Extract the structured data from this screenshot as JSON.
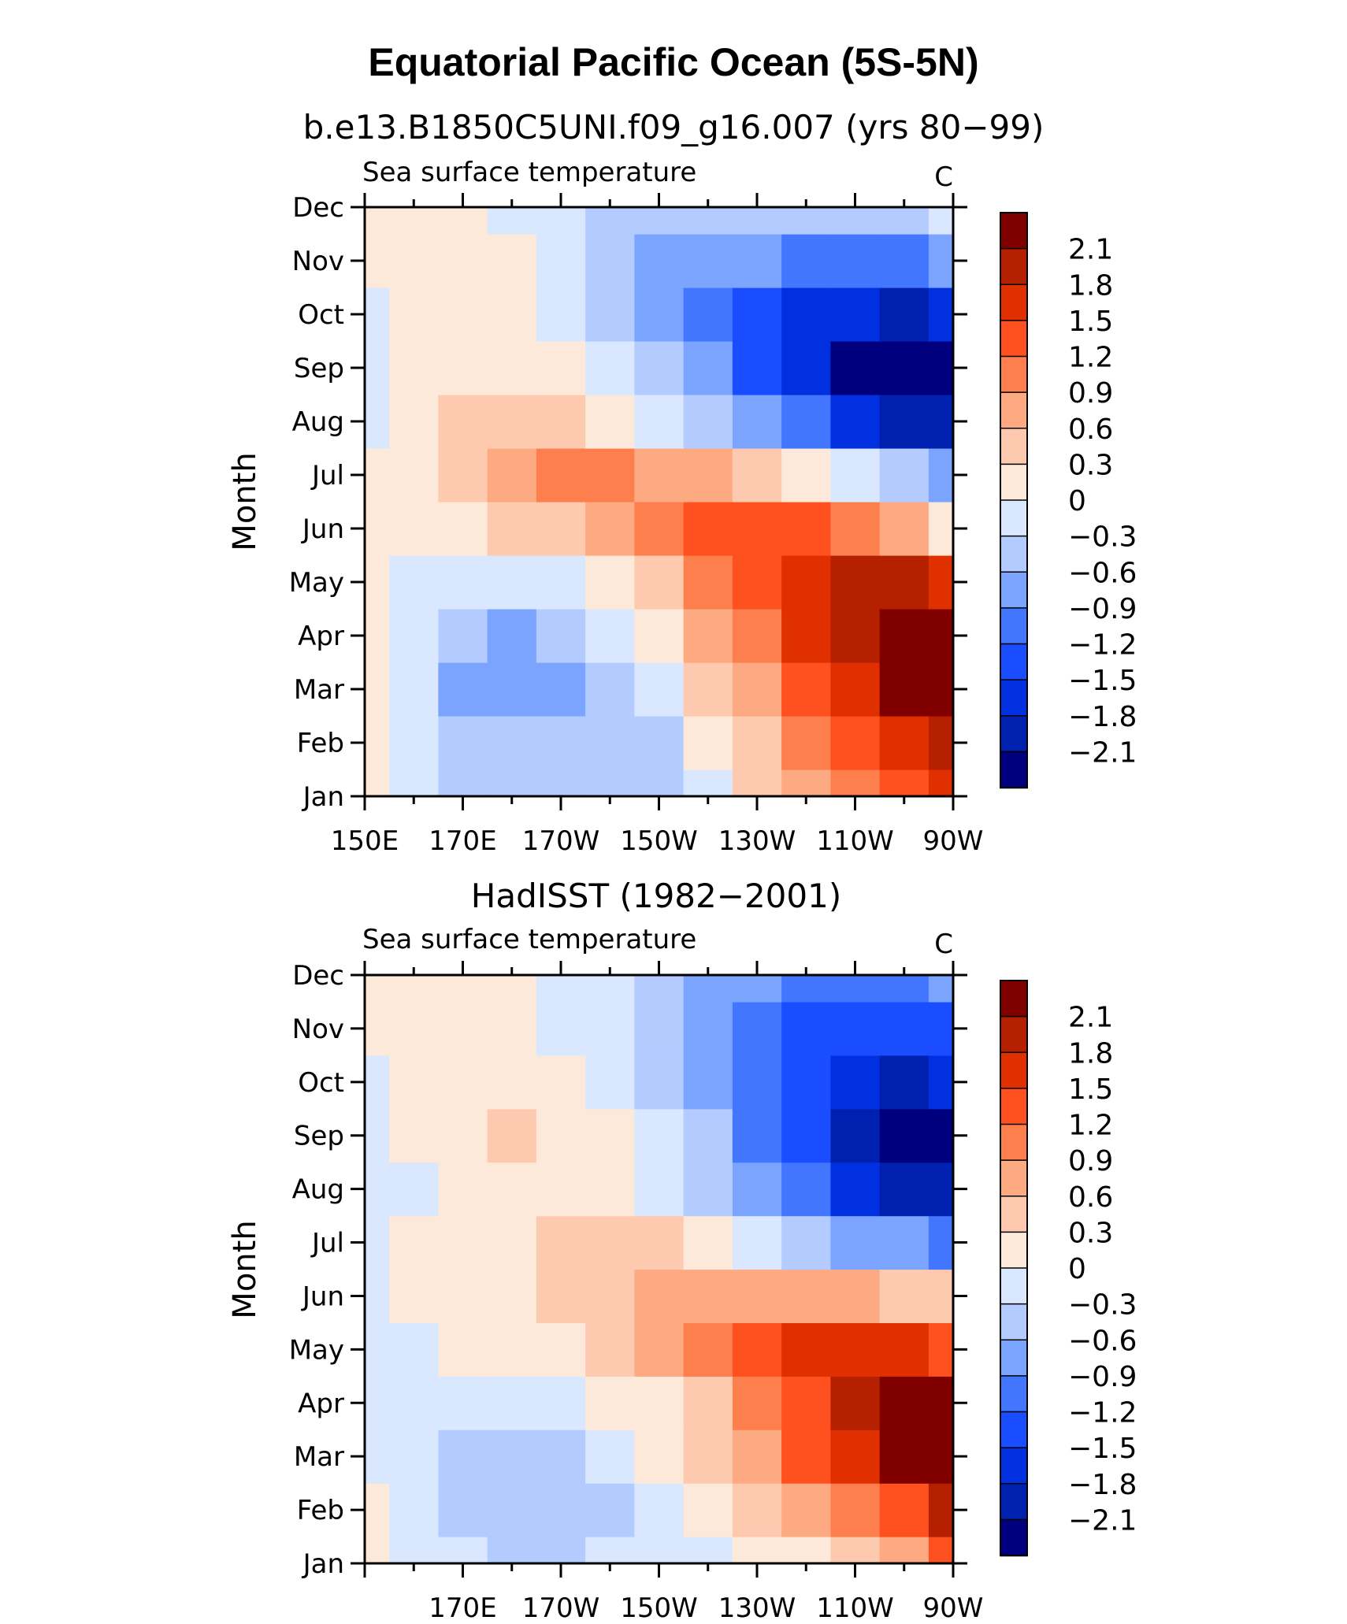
{
  "figure_title": "Equatorial Pacific Ocean (5S-5N)",
  "colors": {
    "levels_low_to_high": [
      "#00007f",
      "#0020b0",
      "#0030e0",
      "#1a4dff",
      "#4276ff",
      "#7ba4ff",
      "#b3cbff",
      "#d9e8ff",
      "#fde9d9",
      "#fdcab0",
      "#fdaa83",
      "#fd7f4d",
      "#ff5020",
      "#e03000",
      "#b52000",
      "#800000"
    ]
  },
  "chart_data": [
    {
      "type": "heatmap",
      "title": "b.e13.B1850C5UNI.f09_g16.007 (yrs 80−99)",
      "left_label": "Sea surface temperature",
      "right_label": "C",
      "xlabel": "",
      "ylabel": "Month",
      "x_tick_labels": [
        "150E",
        "170E",
        "170W",
        "150W",
        "130W",
        "110W",
        "90W"
      ],
      "y_tick_labels": [
        "Jan",
        "Feb",
        "Mar",
        "Apr",
        "May",
        "Jun",
        "Jul",
        "Aug",
        "Sep",
        "Oct",
        "Nov",
        "Dec"
      ],
      "x_range_deg_east": [
        150,
        270
      ],
      "y_range_month": [
        1,
        12
      ],
      "colorbar_labels": [
        "2.1",
        "1.8",
        "1.5",
        "1.2",
        "0.9",
        "0.6",
        "0.3",
        "0",
        "−0.3",
        "−0.6",
        "−0.9",
        "−1.2",
        "−1.5",
        "−1.8",
        "−2.1"
      ],
      "lon_deg_east": [
        150,
        160,
        170,
        180,
        190,
        200,
        210,
        220,
        230,
        240,
        250,
        260,
        270
      ],
      "months": [
        "Jan",
        "Feb",
        "Mar",
        "Apr",
        "May",
        "Jun",
        "Jul",
        "Aug",
        "Sep",
        "Oct",
        "Nov",
        "Dec"
      ],
      "values": [
        [
          0.1,
          -0.3,
          -0.4,
          -0.5,
          -0.5,
          -0.5,
          -0.4,
          -0.2,
          0.3,
          0.6,
          0.9,
          1.3,
          1.6
        ],
        [
          0.0,
          -0.3,
          -0.5,
          -0.6,
          -0.6,
          -0.5,
          -0.4,
          0.0,
          0.5,
          0.9,
          1.3,
          1.7,
          2.0
        ],
        [
          0.0,
          -0.3,
          -0.7,
          -0.9,
          -0.8,
          -0.5,
          -0.2,
          0.3,
          0.8,
          1.3,
          1.7,
          2.1,
          2.2
        ],
        [
          0.0,
          -0.3,
          -0.6,
          -0.7,
          -0.6,
          -0.3,
          0.1,
          0.6,
          1.1,
          1.6,
          2.0,
          2.2,
          2.1
        ],
        [
          0.0,
          -0.2,
          -0.3,
          -0.3,
          -0.2,
          0.1,
          0.5,
          0.9,
          1.3,
          1.6,
          1.8,
          1.8,
          1.5
        ],
        [
          0.1,
          0.1,
          0.2,
          0.3,
          0.5,
          0.8,
          1.1,
          1.3,
          1.3,
          1.2,
          1.0,
          0.7,
          0.2
        ],
        [
          0.1,
          0.2,
          0.5,
          0.7,
          0.9,
          0.9,
          0.8,
          0.6,
          0.4,
          0.1,
          -0.2,
          -0.5,
          -0.8
        ],
        [
          -0.2,
          0.2,
          0.5,
          0.5,
          0.4,
          0.1,
          -0.1,
          -0.4,
          -0.8,
          -1.2,
          -1.6,
          -1.9,
          -1.9
        ],
        [
          -0.3,
          0.1,
          0.2,
          0.2,
          0.0,
          -0.3,
          -0.5,
          -0.8,
          -1.3,
          -1.8,
          -2.2,
          -2.3,
          -2.1
        ],
        [
          -0.2,
          0.1,
          0.1,
          0.0,
          -0.1,
          -0.4,
          -0.7,
          -1.0,
          -1.3,
          -1.6,
          -1.8,
          -1.9,
          -1.8
        ],
        [
          0.0,
          0.1,
          0.1,
          0.0,
          -0.2,
          -0.5,
          -0.7,
          -0.8,
          -0.9,
          -1.0,
          -1.0,
          -1.0,
          -0.9
        ],
        [
          0.1,
          0.1,
          0.0,
          -0.2,
          -0.3,
          -0.4,
          -0.5,
          -0.5,
          -0.6,
          -0.6,
          -0.5,
          -0.4,
          -0.3
        ]
      ]
    },
    {
      "type": "heatmap",
      "title": "HadISST (1982−2001)",
      "left_label": "Sea surface temperature",
      "right_label": "C",
      "xlabel": "",
      "ylabel": "Month",
      "x_tick_labels": [
        "170E",
        "170W",
        "150W",
        "130W",
        "110W",
        "90W"
      ],
      "y_tick_labels": [
        "Jan",
        "Feb",
        "Mar",
        "Apr",
        "May",
        "Jun",
        "Jul",
        "Aug",
        "Sep",
        "Oct",
        "Nov",
        "Dec"
      ],
      "x_range_deg_east": [
        150,
        270
      ],
      "y_range_month": [
        1,
        12
      ],
      "colorbar_labels": [
        "2.1",
        "1.8",
        "1.5",
        "1.2",
        "0.9",
        "0.6",
        "0.3",
        "0",
        "−0.3",
        "−0.6",
        "−0.9",
        "−1.2",
        "−1.5",
        "−1.8",
        "−2.1"
      ],
      "lon_deg_east": [
        150,
        160,
        170,
        180,
        190,
        200,
        210,
        220,
        230,
        240,
        250,
        260,
        270
      ],
      "months": [
        "Jan",
        "Feb",
        "Mar",
        "Apr",
        "May",
        "Jun",
        "Jul",
        "Aug",
        "Sep",
        "Oct",
        "Nov",
        "Dec"
      ],
      "values": [
        [
          0.1,
          -0.2,
          -0.3,
          -0.4,
          -0.4,
          -0.3,
          -0.2,
          -0.1,
          0.0,
          0.2,
          0.5,
          0.8,
          1.2
        ],
        [
          0.0,
          -0.2,
          -0.4,
          -0.5,
          -0.5,
          -0.4,
          -0.2,
          0.1,
          0.3,
          0.6,
          1.0,
          1.4,
          1.8
        ],
        [
          -0.1,
          -0.2,
          -0.5,
          -0.6,
          -0.5,
          -0.3,
          0.0,
          0.3,
          0.7,
          1.2,
          1.7,
          2.2,
          2.4
        ],
        [
          -0.1,
          -0.2,
          -0.3,
          -0.3,
          -0.2,
          0.0,
          0.2,
          0.5,
          0.9,
          1.4,
          1.9,
          2.3,
          2.2
        ],
        [
          -0.1,
          -0.1,
          0.0,
          0.0,
          0.1,
          0.3,
          0.6,
          0.9,
          1.2,
          1.5,
          1.6,
          1.6,
          1.4
        ],
        [
          -0.2,
          0.0,
          0.1,
          0.2,
          0.3,
          0.5,
          0.7,
          0.8,
          0.8,
          0.7,
          0.6,
          0.5,
          0.3
        ],
        [
          -0.2,
          0.0,
          0.2,
          0.2,
          0.3,
          0.4,
          0.3,
          0.1,
          -0.2,
          -0.5,
          -0.7,
          -0.9,
          -1.1
        ],
        [
          -0.3,
          -0.1,
          0.2,
          0.2,
          0.2,
          0.1,
          -0.1,
          -0.4,
          -0.8,
          -1.2,
          -1.6,
          -1.9,
          -2.0
        ],
        [
          -0.2,
          0.1,
          0.2,
          0.3,
          0.2,
          0.0,
          -0.3,
          -0.6,
          -1.0,
          -1.5,
          -1.9,
          -2.1,
          -2.1
        ],
        [
          -0.1,
          0.1,
          0.1,
          0.1,
          0.0,
          -0.2,
          -0.5,
          -0.8,
          -1.1,
          -1.5,
          -1.8,
          -1.9,
          -1.8
        ],
        [
          0.1,
          0.1,
          0.1,
          0.0,
          -0.1,
          -0.3,
          -0.6,
          -0.9,
          -1.1,
          -1.3,
          -1.5,
          -1.5,
          -1.3
        ],
        [
          0.1,
          0.1,
          0.1,
          0.0,
          -0.1,
          -0.3,
          -0.5,
          -0.7,
          -0.9,
          -1.0,
          -1.1,
          -1.0,
          -0.9
        ]
      ]
    }
  ]
}
